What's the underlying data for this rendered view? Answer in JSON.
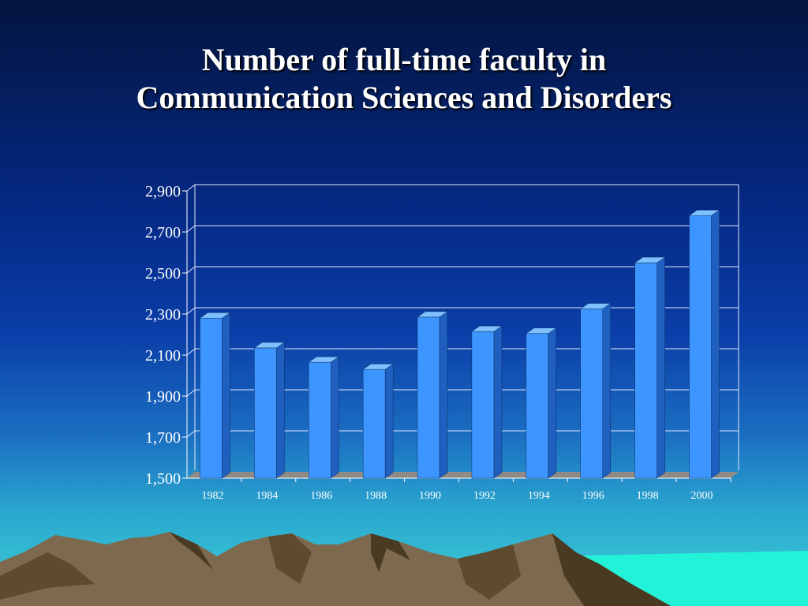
{
  "title_line1": "Number of full-time faculty in",
  "title_line2": "Communication Sciences and Disorders",
  "colors": {
    "bar_front": "#3d96ff",
    "bar_top": "#7fc1ff",
    "bar_side": "#1f5fc0",
    "gridline": "#dfe8ff",
    "floor": "#8f8a86",
    "mountain": "#7d6a4e",
    "mountain_dark": "#4a3a22",
    "water": "#22f2d8"
  },
  "chart_data": {
    "type": "bar",
    "title": "Number of full-time faculty in Communication Sciences and Disorders",
    "categories": [
      "1982",
      "1984",
      "1986",
      "1988",
      "1990",
      "1992",
      "1994",
      "1996",
      "1998",
      "2000"
    ],
    "values": [
      2280,
      2135,
      2065,
      2030,
      2285,
      2215,
      2205,
      2325,
      2550,
      2780
    ],
    "yticks": [
      "1,500",
      "1,700",
      "1,900",
      "2,100",
      "2,300",
      "2,500",
      "2,700",
      "2,900"
    ],
    "ylim": [
      1500,
      2900
    ],
    "grid": true,
    "xlabel": "",
    "ylabel": ""
  }
}
